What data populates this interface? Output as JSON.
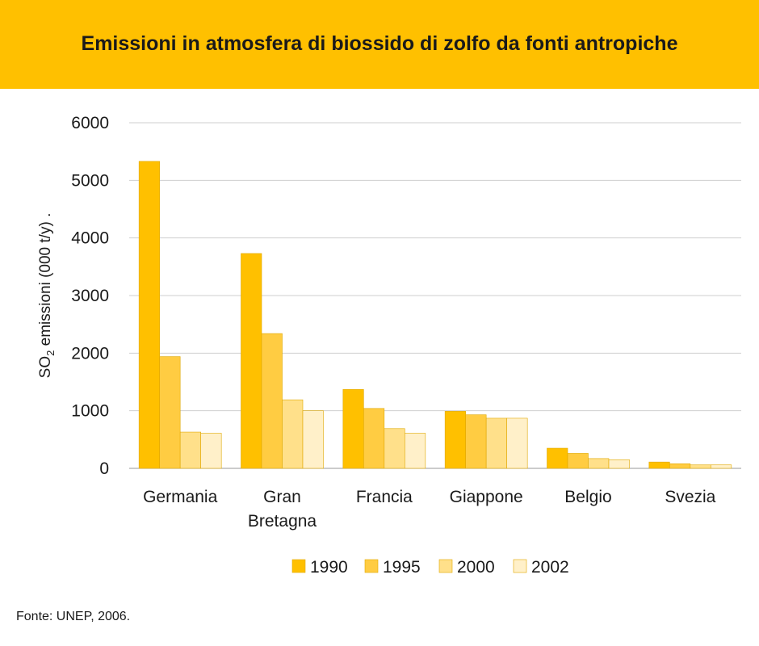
{
  "header": {
    "title": "Emissioni in atmosfera di biossido di zolfo da fonti antropiche"
  },
  "source": "Fonte: UNEP, 2006.",
  "chart_data": {
    "type": "bar",
    "categories": [
      [
        "Germania"
      ],
      [
        "Gran",
        "Bretagna"
      ],
      [
        "Francia"
      ],
      [
        "Giappone"
      ],
      [
        "Belgio"
      ],
      [
        "Svezia"
      ]
    ],
    "series": [
      {
        "name": "1990",
        "color": "#FFC000",
        "values": [
          5330,
          3730,
          1370,
          990,
          350,
          110
        ]
      },
      {
        "name": "1995",
        "color": "#FFCC42",
        "values": [
          1940,
          2340,
          1040,
          930,
          260,
          80
        ]
      },
      {
        "name": "2000",
        "color": "#FFE08A",
        "values": [
          630,
          1190,
          690,
          870,
          170,
          60
        ]
      },
      {
        "name": "2002",
        "color": "#FFF0C9",
        "values": [
          610,
          1000,
          610,
          870,
          150,
          60
        ]
      }
    ],
    "ylabel_prefix": "SO",
    "ylabel_sub": "2",
    "ylabel_suffix": " emissioni (000 t/y) .",
    "ylim": [
      0,
      6000
    ],
    "yticks": [
      0,
      1000,
      2000,
      3000,
      4000,
      5000,
      6000
    ],
    "grid": true,
    "legend_position": "bottom"
  }
}
